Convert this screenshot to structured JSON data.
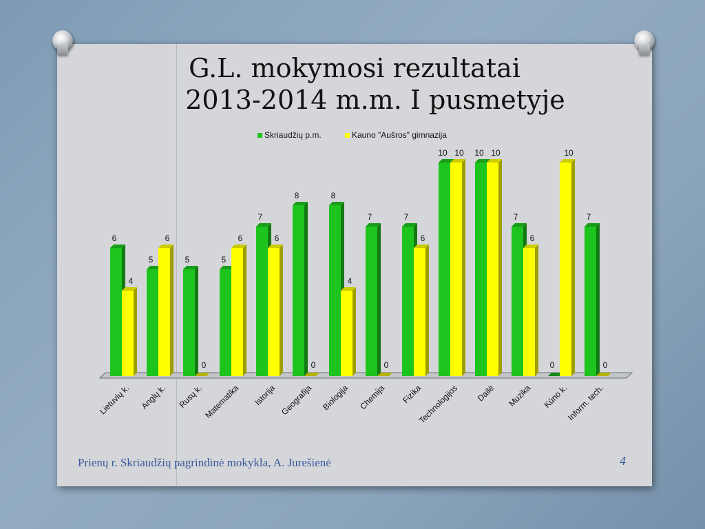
{
  "title_line1": "G.L. mokymosi rezultatai",
  "title_line2": "2013-2014 m.m. I pusmetyje",
  "footer_text": "Prienų r. Skriaudžių pagrindinė mokykla, A. Jurešienė",
  "page_number": "4",
  "chart_data": {
    "type": "bar",
    "title": "",
    "xlabel": "",
    "ylabel": "",
    "ylim": [
      0,
      10
    ],
    "legend_position": "top",
    "grid": false,
    "categories": [
      "Lietuvių k.",
      "Anglų k.",
      "Rusų k.",
      "Matematika",
      "Istorija",
      "Geografija",
      "Biologija",
      "Chemija",
      "Fizika",
      "Technologijos",
      "Dailė",
      "Muzika",
      "Kūno k.",
      "Inform. tech."
    ],
    "series": [
      {
        "name": "Skriaudžių p.m.",
        "color": "#1ec41e",
        "values": [
          6,
          5,
          5,
          5,
          7,
          8,
          8,
          7,
          7,
          10,
          10,
          7,
          0,
          7
        ]
      },
      {
        "name": "Kauno \"Aušros\" gimnazija",
        "color": "#ffff00",
        "values": [
          4,
          6,
          0,
          6,
          6,
          0,
          4,
          0,
          6,
          10,
          10,
          6,
          10,
          0
        ]
      }
    ]
  }
}
